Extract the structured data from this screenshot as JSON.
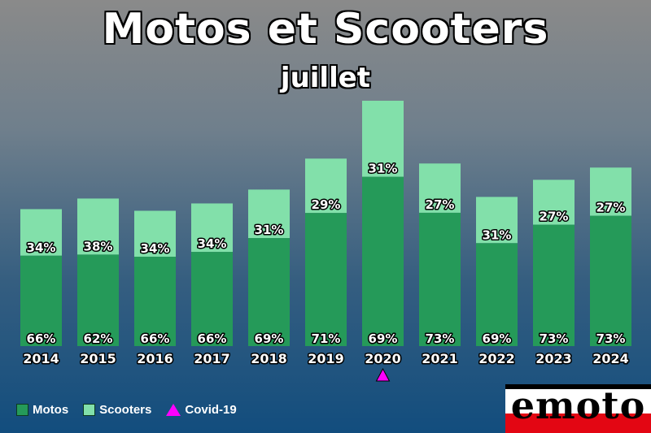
{
  "title": "Motos et Scooters",
  "subtitle": "juillet",
  "legend": {
    "motos_label": "Motos",
    "scooters_label": "Scooters",
    "covid_label": "Covid-19"
  },
  "logo": {
    "text": "emoto"
  },
  "colors": {
    "motos": "#259a59",
    "scooters": "#82e0aa",
    "covid": "#ff00ff"
  },
  "chart_data": {
    "type": "bar",
    "stacked": true,
    "categories": [
      "2014",
      "2015",
      "2016",
      "2017",
      "2018",
      "2019",
      "2020",
      "2021",
      "2022",
      "2023",
      "2024"
    ],
    "series": [
      {
        "name": "Motos",
        "values": [
          66,
          62,
          66,
          66,
          69,
          71,
          69,
          73,
          69,
          73,
          73
        ],
        "labels": [
          "66%",
          "62%",
          "66%",
          "66%",
          "69%",
          "71%",
          "69%",
          "73%",
          "69%",
          "73%",
          "73%"
        ]
      },
      {
        "name": "Scooters",
        "values": [
          34,
          38,
          34,
          34,
          31,
          29,
          31,
          27,
          31,
          27,
          27
        ],
        "labels": [
          "34%",
          "38%",
          "34%",
          "34%",
          "31%",
          "29%",
          "31%",
          "27%",
          "31%",
          "27%",
          "27%"
        ]
      }
    ],
    "relative_totals": [
      168,
      181,
      166,
      175,
      192,
      230,
      301,
      224,
      183,
      204,
      219
    ],
    "markers": [
      {
        "category": "2020",
        "label": "Covid-19",
        "shape": "triangle"
      }
    ],
    "legend_position": "bottom-left",
    "grid": false
  }
}
